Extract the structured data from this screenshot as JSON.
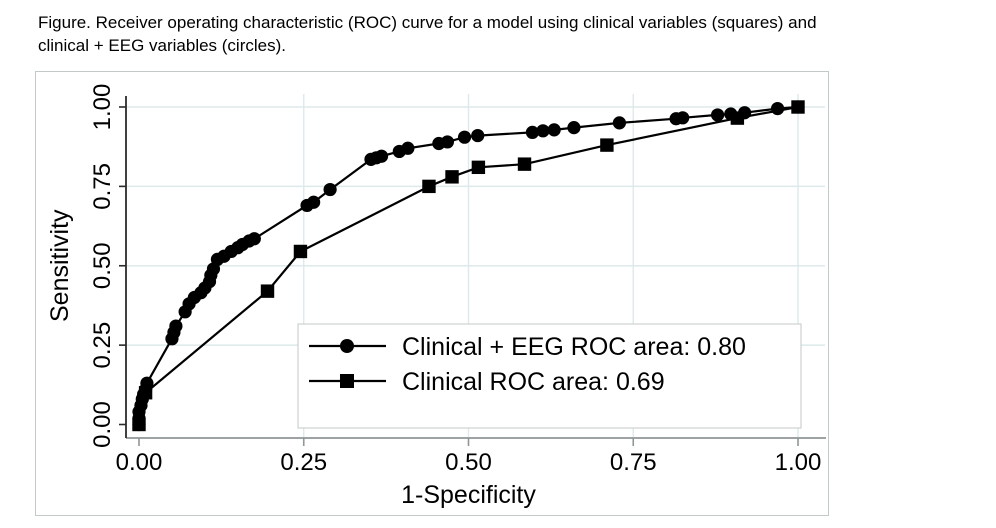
{
  "caption": {
    "line1": "Figure. Receiver operating characteristic (ROC) curve for a model using clinical variables (squares) and",
    "line2": "clinical + EEG variables (circles)."
  },
  "colors": {
    "series": "#000000",
    "gridline": "#dde9eb",
    "x_axis": "#8f9696",
    "y_axis": "#2b2b2b",
    "frame_border": "#c4c9c9",
    "legend_border": "#c4c9c9",
    "legend_fill": "#ffffff",
    "text": "#000000"
  },
  "chart_data": {
    "type": "line",
    "title": "",
    "xlabel": "1-Specificity",
    "ylabel": "Sensitivity",
    "xlim": [
      0,
      1
    ],
    "ylim": [
      0,
      1
    ],
    "xticks": [
      0,
      0.25,
      0.5,
      0.75,
      1
    ],
    "yticks": [
      0,
      0.25,
      0.5,
      0.75,
      1
    ],
    "xtick_labels": [
      "0.00",
      "0.25",
      "0.50",
      "0.75",
      "1.00"
    ],
    "ytick_labels": [
      "0.00",
      "0.25",
      "0.50",
      "0.75",
      "1.00"
    ],
    "grid": true,
    "legend_position": "inside-lower-right",
    "series": [
      {
        "name": "Clinical + EEG ROC area: 0.80",
        "roc_area": 0.8,
        "marker": "circle",
        "points": [
          [
            0.0,
            0.0
          ],
          [
            0.0,
            0.02
          ],
          [
            0.0,
            0.04
          ],
          [
            0.003,
            0.06
          ],
          [
            0.005,
            0.08
          ],
          [
            0.007,
            0.095
          ],
          [
            0.01,
            0.11
          ],
          [
            0.012,
            0.13
          ],
          [
            0.05,
            0.27
          ],
          [
            0.053,
            0.29
          ],
          [
            0.056,
            0.31
          ],
          [
            0.07,
            0.355
          ],
          [
            0.076,
            0.38
          ],
          [
            0.084,
            0.4
          ],
          [
            0.094,
            0.415
          ],
          [
            0.1,
            0.43
          ],
          [
            0.107,
            0.45
          ],
          [
            0.109,
            0.47
          ],
          [
            0.113,
            0.49
          ],
          [
            0.119,
            0.52
          ],
          [
            0.129,
            0.53
          ],
          [
            0.14,
            0.545
          ],
          [
            0.15,
            0.557
          ],
          [
            0.157,
            0.567
          ],
          [
            0.167,
            0.578
          ],
          [
            0.175,
            0.585
          ],
          [
            0.255,
            0.69
          ],
          [
            0.265,
            0.7
          ],
          [
            0.29,
            0.74
          ],
          [
            0.352,
            0.835
          ],
          [
            0.36,
            0.84
          ],
          [
            0.368,
            0.845
          ],
          [
            0.395,
            0.86
          ],
          [
            0.408,
            0.87
          ],
          [
            0.455,
            0.885
          ],
          [
            0.468,
            0.89
          ],
          [
            0.494,
            0.905
          ],
          [
            0.514,
            0.91
          ],
          [
            0.597,
            0.92
          ],
          [
            0.613,
            0.925
          ],
          [
            0.63,
            0.928
          ],
          [
            0.66,
            0.935
          ],
          [
            0.729,
            0.95
          ],
          [
            0.815,
            0.963
          ],
          [
            0.825,
            0.966
          ],
          [
            0.878,
            0.975
          ],
          [
            0.898,
            0.978
          ],
          [
            0.919,
            0.982
          ],
          [
            0.969,
            0.995
          ],
          [
            1.0,
            1.0
          ]
        ]
      },
      {
        "name": "Clinical ROC area: 0.69",
        "roc_area": 0.69,
        "marker": "square",
        "points": [
          [
            0.0,
            0.0
          ],
          [
            0.01,
            0.1
          ],
          [
            0.195,
            0.42
          ],
          [
            0.245,
            0.545
          ],
          [
            0.44,
            0.75
          ],
          [
            0.475,
            0.78
          ],
          [
            0.515,
            0.81
          ],
          [
            0.585,
            0.82
          ],
          [
            0.71,
            0.88
          ],
          [
            0.908,
            0.965
          ],
          [
            1.0,
            1.0
          ]
        ]
      }
    ]
  }
}
